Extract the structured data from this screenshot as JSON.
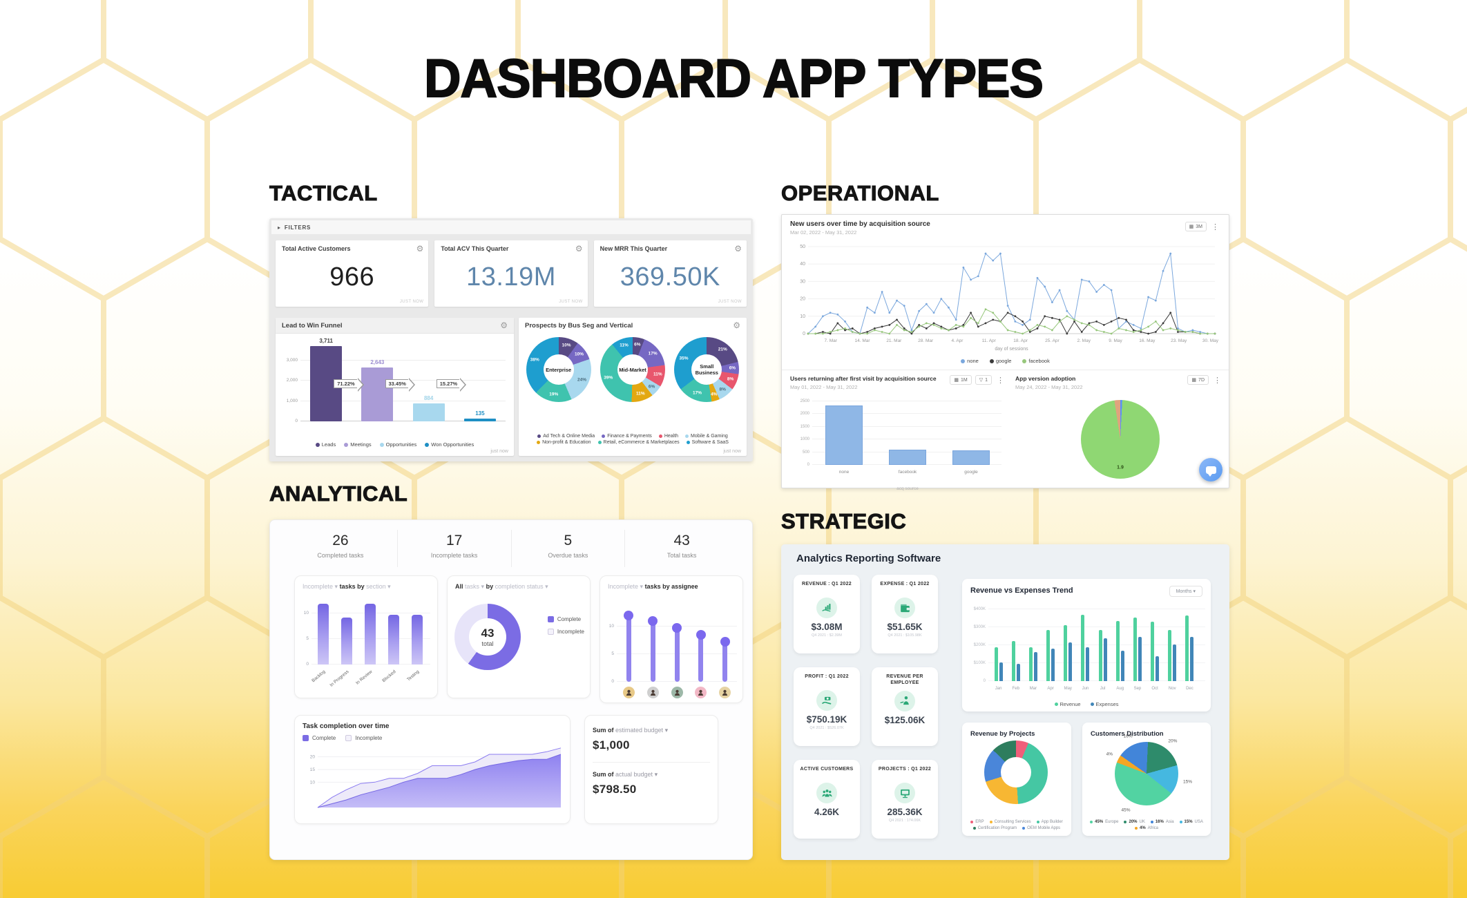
{
  "page": {
    "title": "DASHBOARD APP TYPES"
  },
  "tactical": {
    "label": "TACTICAL",
    "filters_label": "FILTERS",
    "kpis": [
      {
        "title": "Total Active Customers",
        "value": "966",
        "value_color": "#1f1f1f",
        "timestamp": "JUST NOW"
      },
      {
        "title": "Total ACV This Quarter",
        "value": "13.19M",
        "value_color": "#5f86ab",
        "timestamp": "JUST NOW"
      },
      {
        "title": "New MRR This Quarter",
        "value": "369.50K",
        "value_color": "#5f86ab",
        "timestamp": "JUST NOW"
      }
    ]
  },
  "operational": {
    "label": "OPERATIONAL"
  },
  "analytical": {
    "label": "ANALYTICAL",
    "stats": [
      {
        "value": "26",
        "label": "Completed tasks"
      },
      {
        "value": "17",
        "label": "Incomplete tasks"
      },
      {
        "value": "5",
        "label": "Overdue tasks"
      },
      {
        "value": "43",
        "label": "Total tasks"
      }
    ],
    "budget": {
      "estimated_prefix": "Sum of",
      "estimated_field": "estimated budget",
      "estimated_value": "$1,000",
      "actual_prefix": "Sum of",
      "actual_field": "actual budget",
      "actual_value": "$798.50"
    }
  },
  "strategic": {
    "label": "STRATEGIC",
    "title": "Analytics Reporting Software",
    "kpis": [
      {
        "title": "REVENUE : Q1 2022",
        "icon": "revenue",
        "value": "$3.08M",
        "prev": "Q4 2021 : $2.39M"
      },
      {
        "title": "EXPENSE : Q1 2022",
        "icon": "expense",
        "value": "$51.65K",
        "prev": "Q4 2021 : $105.98K"
      },
      {
        "title": "PROFIT : Q1 2022",
        "icon": "profit",
        "value": "$750.19K",
        "prev": "Q4 2021 : $526.07K"
      },
      {
        "title": "REVENUE PER EMPLOYEE",
        "icon": "employee",
        "value": "$125.06K",
        "prev": ""
      },
      {
        "title": "ACTIVE CUSTOMERS",
        "icon": "customers",
        "value": "4.26K",
        "prev": ""
      },
      {
        "title": "PROJECTS : Q1 2022",
        "icon": "projects",
        "value": "285.36K",
        "prev": "Q4 2021 : 174.06K"
      }
    ]
  },
  "chart_data": [
    {
      "id": "lead-funnel",
      "type": "bar",
      "title": "Lead to Win Funnel",
      "footer": "just now",
      "categories": [
        "Leads",
        "Meetings",
        "Opportunities",
        "Won Opportunities"
      ],
      "values": [
        3711,
        2643,
        884,
        135
      ],
      "value_labels": [
        "3,711",
        "2,643",
        "884",
        "135"
      ],
      "colors": [
        "#584a84",
        "#a99bd6",
        "#a8d8ee",
        "#1e8fc4"
      ],
      "label_colors": [
        "#3a3a3a",
        "#9b8cd0",
        "#9fd3e8",
        "#1e8fc4"
      ],
      "conversions": [
        "71.22%",
        "33.45%",
        "15.27%"
      ],
      "yticks": [
        0,
        1000,
        2000,
        3000
      ],
      "ytick_labels": [
        "0",
        "1,000",
        "2,000",
        "3,000"
      ],
      "ylim": [
        0,
        3850
      ]
    },
    {
      "id": "prospects",
      "type": "pie",
      "title": "Prospects by Bus Seg and Vertical",
      "footer": "just now",
      "legend": [
        {
          "label": "Ad Tech & Online Media",
          "color": "#584a84"
        },
        {
          "label": "Finance & Payments",
          "color": "#7668c3"
        },
        {
          "label": "Health",
          "color": "#e8566d"
        },
        {
          "label": "Mobile & Gaming",
          "color": "#a8d8ee"
        },
        {
          "label": "Non-profit & Education",
          "color": "#e3a812"
        },
        {
          "label": "Retail, eCommerce & Marketplaces",
          "color": "#3fc3ae"
        },
        {
          "label": "Software & SaaS",
          "color": "#1e9ecf"
        }
      ],
      "donuts": [
        {
          "center": "Enterprise",
          "slices": [
            [
              "Ad Tech & Online Media",
              10
            ],
            [
              "Finance & Payments",
              10
            ],
            [
              "Mobile & Gaming",
              24
            ],
            [
              "Retail, eCommerce & Marketplaces",
              19
            ],
            [
              "Software & SaaS",
              38
            ]
          ]
        },
        {
          "center": "Mid-Market",
          "slices": [
            [
              "Ad Tech & Online Media",
              6
            ],
            [
              "Finance & Payments",
              17
            ],
            [
              "Health",
              11
            ],
            [
              "Mobile & Gaming",
              6
            ],
            [
              "Non-profit & Education",
              11
            ],
            [
              "Retail, eCommerce & Marketplaces",
              39
            ],
            [
              "Software & SaaS",
              11
            ]
          ]
        },
        {
          "center": "Small Business",
          "slices": [
            [
              "Ad Tech & Online Media",
              21
            ],
            [
              "Finance & Payments",
              6
            ],
            [
              "Health",
              8
            ],
            [
              "Mobile & Gaming",
              8
            ],
            [
              "Non-profit & Education",
              4
            ],
            [
              "Retail, eCommerce & Marketplaces",
              17
            ],
            [
              "Software & SaaS",
              35
            ]
          ]
        }
      ]
    },
    {
      "id": "new-users",
      "type": "line",
      "title": "New users over time by acquisition source",
      "subtitle": "Mar 02, 2022 - May 31, 2022",
      "range_button": "3M",
      "xlabel": "day of sessions",
      "ylim": [
        0,
        50
      ],
      "yticks": [
        0,
        10,
        20,
        30,
        40,
        50
      ],
      "x_ticks": [
        "7. Mar",
        "14. Mar",
        "21. Mar",
        "28. Mar",
        "4. Apr",
        "11. Apr",
        "18. Apr",
        "25. Apr",
        "2. May",
        "9. May",
        "16. May",
        "23. May",
        "30. May"
      ],
      "series": [
        {
          "name": "none",
          "color": "#7aa7dd",
          "values": [
            0,
            4,
            10,
            12,
            11,
            7,
            1,
            0,
            15,
            12,
            24,
            12,
            19,
            16,
            2,
            13,
            17,
            12,
            20,
            15,
            8,
            38,
            31,
            33,
            46,
            42,
            46,
            16,
            7,
            5,
            8,
            32,
            27,
            18,
            25,
            13,
            8,
            31,
            30,
            24,
            28,
            25,
            3,
            7,
            5,
            3,
            21,
            19,
            36,
            46,
            3,
            1,
            2,
            1,
            0,
            0
          ]
        },
        {
          "name": "google",
          "color": "#3a3a3a",
          "values": [
            0,
            0,
            1,
            0,
            6,
            2,
            3,
            0,
            1,
            3,
            4,
            5,
            8,
            3,
            0,
            5,
            3,
            6,
            4,
            2,
            3,
            5,
            12,
            4,
            6,
            8,
            7,
            12,
            10,
            7,
            1,
            3,
            10,
            9,
            8,
            0,
            7,
            1,
            6,
            7,
            5,
            7,
            9,
            8,
            2,
            1,
            0,
            1,
            6,
            12,
            1,
            1,
            1,
            0,
            0,
            0
          ]
        },
        {
          "name": "facebook",
          "color": "#97c77c",
          "values": [
            0,
            0,
            0,
            1,
            2,
            3,
            1,
            0,
            0,
            2,
            1,
            0,
            5,
            2,
            1,
            4,
            6,
            5,
            3,
            2,
            5,
            4,
            9,
            6,
            14,
            12,
            7,
            2,
            1,
            0,
            2,
            5,
            4,
            2,
            7,
            10,
            8,
            6,
            5,
            2,
            1,
            0,
            3,
            2,
            1,
            2,
            4,
            7,
            2,
            3,
            2,
            1,
            1,
            0,
            0,
            0
          ]
        }
      ]
    },
    {
      "id": "returning-users",
      "type": "bar",
      "title": "Users returning after first visit by acquisition source",
      "subtitle": "May 01, 2022 - May 31, 2022",
      "range_button": "1M",
      "filter_button": "1",
      "categories": [
        "none",
        "facebook",
        "google"
      ],
      "values": [
        2350,
        590,
        570
      ],
      "bar_color": "#8fb7e6",
      "xlabel": "acq source",
      "ylim": [
        0,
        2500
      ],
      "yticks": [
        0,
        500,
        1000,
        1500,
        2000,
        2500
      ]
    },
    {
      "id": "app-version",
      "type": "pie",
      "title": "App version adoption",
      "subtitle": "May 24, 2022 - May 31, 2022",
      "range_button": "7D",
      "center_label": "1.9",
      "slices": [
        {
          "label": "",
          "value": 0.8,
          "color": "#5b8ff9"
        },
        {
          "label": "1.9",
          "value": 96.8,
          "color": "#8fd773"
        },
        {
          "label": "",
          "value": 2.4,
          "color": "#e0a37e"
        }
      ]
    },
    {
      "id": "tasks-by-section",
      "type": "bar",
      "header": {
        "filter": "Incomplete",
        "mid": "tasks by",
        "group": "section"
      },
      "categories": [
        "Backlog",
        "In Progress",
        "In Review",
        "Blocked",
        "Testing"
      ],
      "values": [
        12,
        9.3,
        12,
        9.8,
        9.8
      ],
      "yticks": [
        0,
        5,
        10
      ],
      "ylim": [
        0,
        12.5
      ]
    },
    {
      "id": "completion-status",
      "type": "pie",
      "header": {
        "filter": "All",
        "noun": "tasks",
        "mid": "by",
        "group": "completion status"
      },
      "center_value": "43",
      "center_label": "total",
      "slices": [
        {
          "label": "Complete",
          "value": 60,
          "color": "#7b6ce4"
        },
        {
          "label": "Incomplete",
          "value": 40,
          "color": "#e7e4f9"
        }
      ]
    },
    {
      "id": "tasks-by-assignee",
      "type": "lollipop",
      "header": {
        "filter": "Incomplete",
        "mid": "tasks by assignee"
      },
      "values": [
        12,
        11,
        9.8,
        8.5,
        7.3
      ],
      "yticks": [
        0,
        5,
        10
      ],
      "ylim": [
        0,
        12.5
      ],
      "avatar_colors": [
        "#e8c987",
        "#cfcfcf",
        "#9db8a8",
        "#f2b8c6",
        "#e6d3a3"
      ]
    },
    {
      "id": "task-completion",
      "type": "area",
      "title": "Task completion over time",
      "legend": [
        "Complete",
        "Incomplete"
      ],
      "yticks": [
        10,
        15,
        20
      ],
      "ylim": [
        0,
        24
      ],
      "complete": [
        0,
        1.5,
        3,
        5,
        6.5,
        8,
        10,
        11.5,
        11.5,
        11.5,
        13,
        15,
        16.5,
        17.5,
        18.5,
        19,
        19,
        21
      ],
      "total": [
        0,
        4,
        7,
        9.5,
        10,
        11.5,
        11.5,
        13.5,
        16.5,
        16.5,
        16.5,
        18,
        21,
        21,
        21,
        21,
        22,
        23.5
      ]
    },
    {
      "id": "revenue-expenses",
      "type": "bar",
      "title": "Revenue vs Expenses Trend",
      "dropdown": "Months",
      "categories": [
        "Jan",
        "Feb",
        "Mar",
        "Apr",
        "May",
        "Jun",
        "Jul",
        "Aug",
        "Sep",
        "Oct",
        "Nov",
        "Dec"
      ],
      "series": [
        {
          "name": "Revenue",
          "color": "#4fd19e",
          "values": [
            190,
            225,
            190,
            285,
            310,
            370,
            285,
            335,
            355,
            330,
            285,
            365
          ]
        },
        {
          "name": "Expenses",
          "color": "#4186b8",
          "values": [
            105,
            95,
            160,
            180,
            215,
            190,
            240,
            170,
            245,
            140,
            205,
            245
          ]
        }
      ],
      "ylim": [
        0,
        400
      ],
      "yticks": [
        0,
        100,
        200,
        300,
        400
      ],
      "ytick_labels": [
        "0",
        "$100K",
        "$200K",
        "$300K",
        "$400K"
      ]
    },
    {
      "id": "revenue-projects",
      "type": "pie",
      "title": "Revenue by Projects",
      "slices": [
        {
          "label": "ERP",
          "value": 6,
          "color": "#ef5e7a"
        },
        {
          "label": "App Builder",
          "value": 40,
          "color": "#45c7a3"
        },
        {
          "label": "Consulting Services",
          "value": 20,
          "color": "#f7b733"
        },
        {
          "label": "OEM Mobile Apps",
          "value": 16,
          "color": "#4a86d9"
        },
        {
          "label": "Certification Program",
          "value": 12,
          "color": "#2e7d5e"
        }
      ],
      "legend_order": [
        "ERP",
        "Consulting Services",
        "App Builder",
        "Certification Program",
        "OEM Mobile Apps"
      ]
    },
    {
      "id": "customers-distribution",
      "type": "pie",
      "title": "Customers Distribution",
      "start_angle": -55,
      "slices": [
        {
          "label": "Asia",
          "pct": "16%",
          "value": 16,
          "color": "#4285d9"
        },
        {
          "label": "UK",
          "pct": "20%",
          "value": 20,
          "color": "#2e8b6b"
        },
        {
          "label": "USA",
          "pct": "15%",
          "value": 15,
          "color": "#45b8e0"
        },
        {
          "label": "Europe",
          "pct": "45%",
          "value": 45,
          "color": "#52d3a2"
        },
        {
          "label": "Africa",
          "pct": "4%",
          "value": 4,
          "color": "#f5a623"
        }
      ],
      "legend": [
        {
          "pct": "45%",
          "label": "Europe",
          "color": "#52d3a2"
        },
        {
          "pct": "20%",
          "label": "UK",
          "color": "#2e8b6b"
        },
        {
          "pct": "16%",
          "label": "Asia",
          "color": "#4285d9"
        },
        {
          "pct": "15%",
          "label": "USA",
          "color": "#45b8e0"
        },
        {
          "pct": "4%",
          "label": "Africa",
          "color": "#f5a623"
        }
      ]
    }
  ]
}
